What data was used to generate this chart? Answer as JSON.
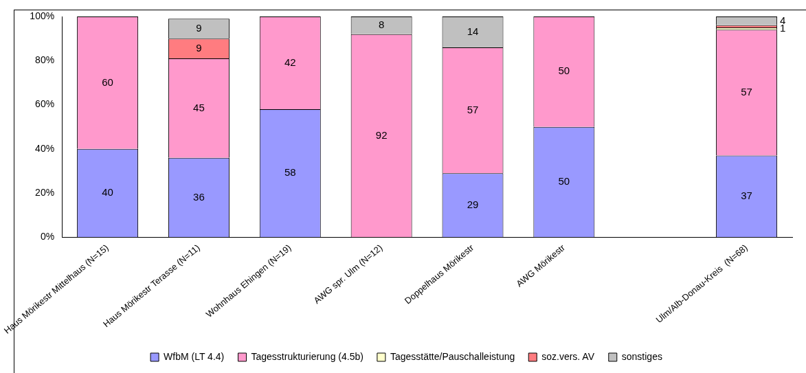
{
  "chart_data": {
    "type": "bar",
    "stacked": true,
    "categories": [
      "Haus Mörikestr Mittelhaus (N=15)",
      "Haus Mörikestr Terasse (N=11)",
      "Wohnhaus Ehingen (N=19)",
      "AWG spr. Ulm (N=12)",
      "Doppelhaus Mörikestr",
      "AWG Mörikestr",
      null,
      "Ulm/Alb-Donau-Kreis  (N=68)"
    ],
    "series": [
      {
        "name": "WfbM (LT 4.4)",
        "color": "#9999ff",
        "values": [
          40,
          36,
          58,
          null,
          29,
          50,
          null,
          37
        ],
        "value_labels": [
          "40",
          "36",
          "58",
          null,
          "29",
          "50",
          null,
          "37"
        ]
      },
      {
        "name": "Tagesstrukturierung (4.5b)",
        "color": "#ff99cc",
        "values": [
          60,
          45,
          42,
          92,
          57,
          50,
          null,
          57
        ],
        "value_labels": [
          "60",
          "45",
          "42",
          "92",
          "57",
          "50",
          null,
          "57"
        ]
      },
      {
        "name": "Tagesstätte/Pauschalleistung",
        "color": "#ffffcc",
        "values": [
          null,
          null,
          null,
          null,
          null,
          null,
          null,
          1
        ],
        "value_labels": [
          null,
          null,
          null,
          null,
          null,
          null,
          null,
          "1"
        ]
      },
      {
        "name": "soz.vers. AV",
        "color": "#ff7c80",
        "values": [
          null,
          9,
          null,
          null,
          null,
          null,
          null,
          1
        ],
        "value_labels": [
          null,
          "9",
          null,
          null,
          null,
          null,
          null,
          null
        ]
      },
      {
        "name": "sonstiges",
        "color": "#c0c0c0",
        "values": [
          null,
          9,
          null,
          8,
          14,
          null,
          null,
          4
        ],
        "value_labels": [
          null,
          "9",
          null,
          "8",
          "14",
          null,
          null,
          "4"
        ]
      }
    ],
    "ylim": [
      0,
      100
    ],
    "yticks": [
      {
        "value": 0,
        "label": "0%"
      },
      {
        "value": 20,
        "label": "20%"
      },
      {
        "value": 40,
        "label": "40%"
      },
      {
        "value": 60,
        "label": "60%"
      },
      {
        "value": 80,
        "label": "80%"
      },
      {
        "value": 100,
        "label": "100%"
      }
    ],
    "grid": false,
    "legend": "bottom"
  }
}
